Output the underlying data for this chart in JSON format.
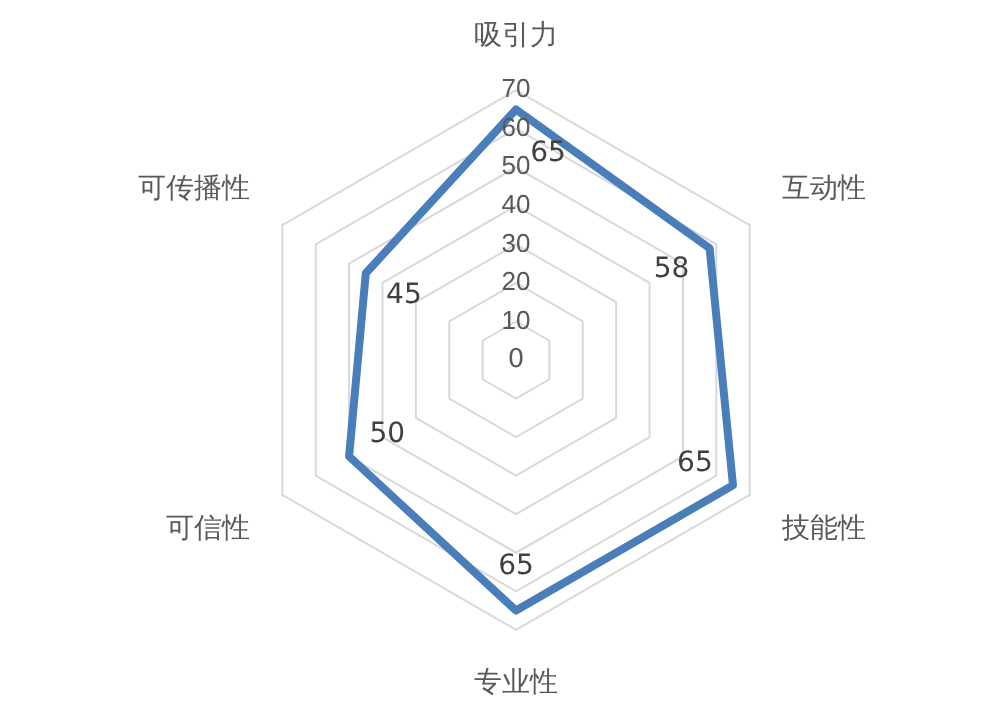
{
  "chart_data": {
    "type": "radar",
    "categories": [
      "吸引力",
      "互动性",
      "技能性",
      "专业性",
      "可信性",
      "可传播性"
    ],
    "series": [
      {
        "color": "#4a7ebb",
        "values": [
          65,
          58,
          65,
          65,
          50,
          45
        ]
      }
    ],
    "ylim": [
      0,
      70
    ],
    "yticks": [
      0,
      10,
      20,
      30,
      40,
      50,
      60,
      70
    ],
    "grid": true,
    "data_labels": true,
    "legend": false,
    "marker": "none"
  }
}
